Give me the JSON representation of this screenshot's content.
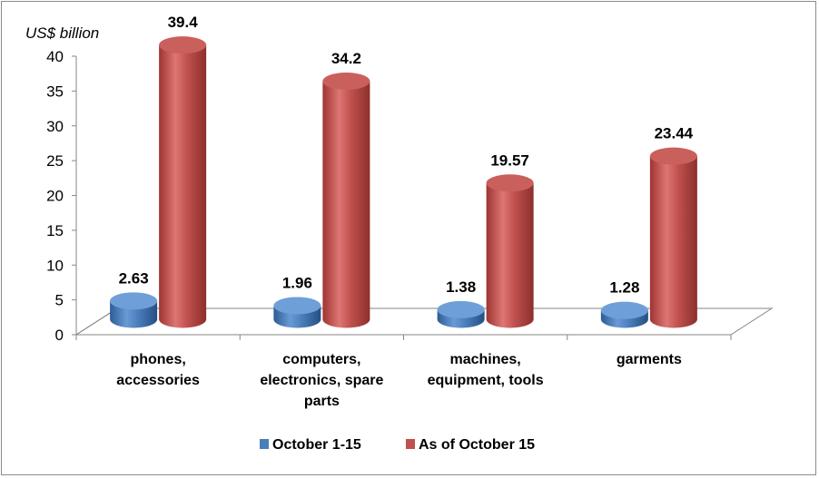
{
  "chart_data": {
    "type": "bar",
    "ylabel": "US$ billion",
    "ylim": [
      0,
      40
    ],
    "yticks": [
      "0",
      "5",
      "10",
      "15",
      "20",
      "25",
      "30",
      "35",
      "40"
    ],
    "categories": [
      [
        "phones,",
        "accessories"
      ],
      [
        "computers,",
        "electronics, spare",
        "parts"
      ],
      [
        "machines,",
        "equipment, tools"
      ],
      [
        "garments"
      ]
    ],
    "series": [
      {
        "name": "October 1-15",
        "color": "#4a7ebb",
        "values": [
          2.63,
          1.96,
          1.38,
          1.28
        ],
        "labels": [
          "2.63",
          "1.96",
          "1.38",
          "1.28"
        ]
      },
      {
        "name": "As of October 15",
        "color": "#c0504d",
        "values": [
          39.4,
          34.2,
          19.57,
          23.44
        ],
        "labels": [
          "39.4",
          "34.2",
          "19.57",
          "23.44"
        ]
      }
    ],
    "legend": "bottom",
    "grid": false,
    "style": "3d-cylinder"
  }
}
